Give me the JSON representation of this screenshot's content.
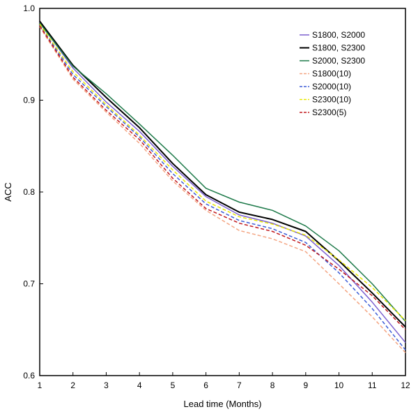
{
  "chart_data": {
    "type": "line",
    "title": "",
    "xlabel": "Lead time (Months)",
    "ylabel": "ACC",
    "xlim": [
      1,
      12
    ],
    "ylim": [
      0.6,
      1.0
    ],
    "x": [
      1,
      2,
      3,
      4,
      5,
      6,
      7,
      8,
      9,
      10,
      11,
      12
    ],
    "xticks": [
      "1",
      "2",
      "3",
      "4",
      "5",
      "6",
      "7",
      "8",
      "9",
      "10",
      "11",
      "12"
    ],
    "yticks": [
      "0.6",
      "0.7",
      "0.8",
      "0.9",
      "1.0"
    ],
    "yticks_values": [
      0.6,
      0.7,
      0.8,
      0.9,
      1.0
    ],
    "grid": false,
    "legend_position": "top-right",
    "series": [
      {
        "name": "S1800, S2000",
        "color": "#7b5fcf",
        "dash": "solid",
        "width": 1.5,
        "values": [
          0.985,
          0.935,
          0.898,
          0.866,
          0.828,
          0.795,
          0.775,
          0.766,
          0.752,
          0.72,
          0.68,
          0.636
        ]
      },
      {
        "name": "S1800, S2300",
        "color": "#000000",
        "dash": "solid",
        "width": 2,
        "values": [
          0.986,
          0.938,
          0.903,
          0.87,
          0.831,
          0.797,
          0.778,
          0.77,
          0.757,
          0.725,
          0.69,
          0.653
        ]
      },
      {
        "name": "S2000, S2300",
        "color": "#1e7a4a",
        "dash": "solid",
        "width": 1.5,
        "values": [
          0.984,
          0.937,
          0.907,
          0.874,
          0.84,
          0.804,
          0.789,
          0.78,
          0.763,
          0.736,
          0.7,
          0.659
        ]
      },
      {
        "name": "S1800(10)",
        "color": "#f4a582",
        "dash": "dashed",
        "width": 1.5,
        "values": [
          0.98,
          0.923,
          0.887,
          0.853,
          0.812,
          0.78,
          0.758,
          0.749,
          0.735,
          0.7,
          0.664,
          0.625
        ]
      },
      {
        "name": "S2000(10)",
        "color": "#3b5bd6",
        "dash": "dashed",
        "width": 1.5,
        "values": [
          0.982,
          0.928,
          0.893,
          0.86,
          0.82,
          0.787,
          0.769,
          0.76,
          0.745,
          0.712,
          0.673,
          0.628
        ]
      },
      {
        "name": "S2300(10)",
        "color": "#e8e800",
        "dash": "dashed",
        "width": 1.5,
        "values": [
          0.983,
          0.931,
          0.895,
          0.862,
          0.824,
          0.79,
          0.773,
          0.765,
          0.753,
          0.726,
          0.696,
          0.66
        ]
      },
      {
        "name": "S2300(5)",
        "color": "#c0161b",
        "dash": "dashed",
        "width": 1.5,
        "values": [
          0.981,
          0.925,
          0.889,
          0.857,
          0.815,
          0.782,
          0.766,
          0.757,
          0.742,
          0.716,
          0.687,
          0.65
        ]
      }
    ]
  }
}
